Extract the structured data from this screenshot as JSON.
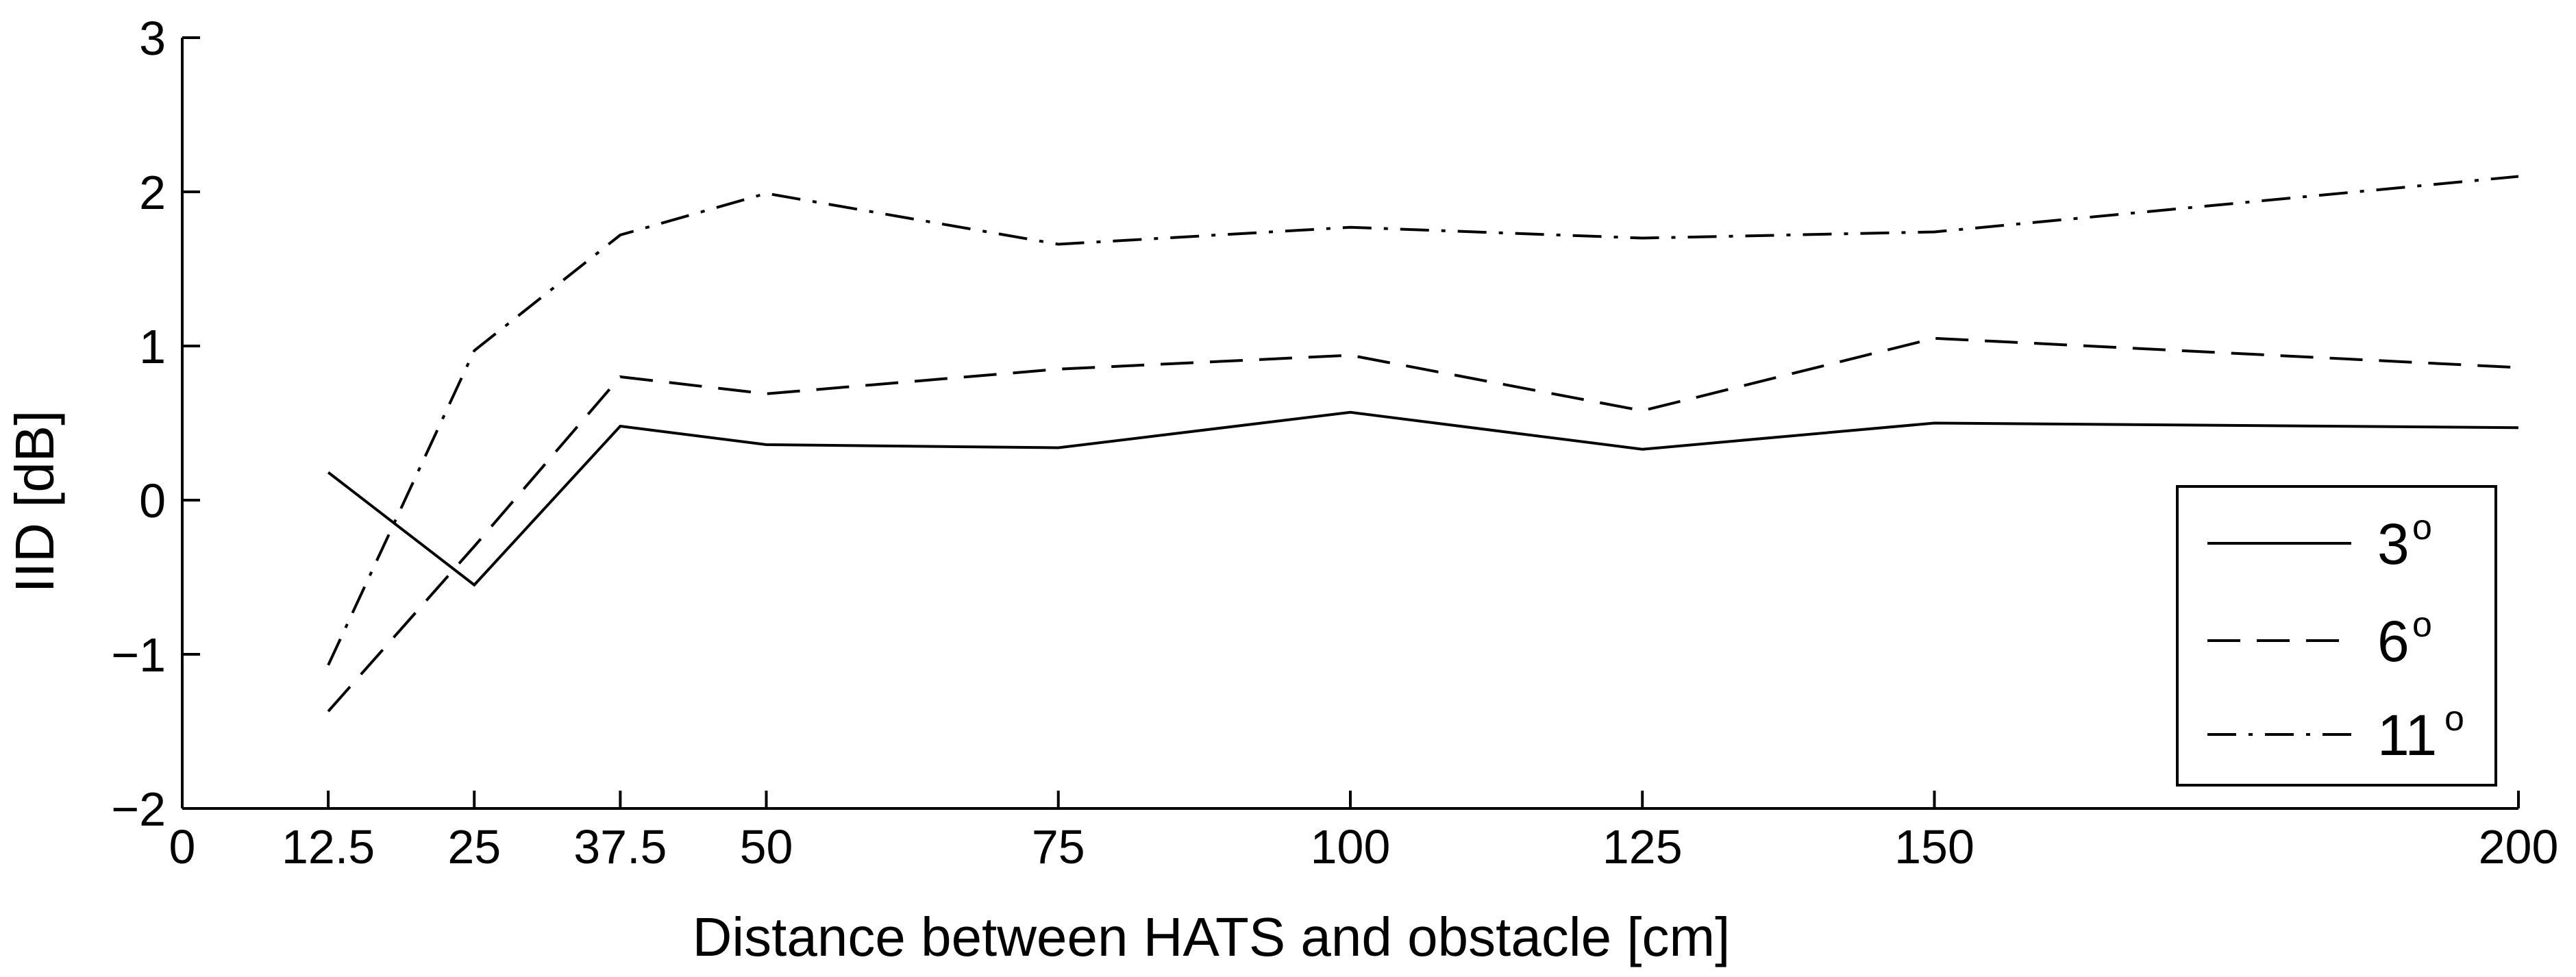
{
  "chart_data": {
    "type": "line",
    "xlabel": "Distance between HATS and obstacle [cm]",
    "ylabel": "IID [dB]",
    "x_ticks": [
      {
        "pos": 0,
        "label": "0"
      },
      {
        "pos": 1,
        "label": "12.5"
      },
      {
        "pos": 2,
        "label": "25"
      },
      {
        "pos": 3,
        "label": "37.5"
      },
      {
        "pos": 4,
        "label": "50"
      },
      {
        "pos": 6,
        "label": "75"
      },
      {
        "pos": 8,
        "label": "100"
      },
      {
        "pos": 10,
        "label": "125"
      },
      {
        "pos": 12,
        "label": "150"
      },
      {
        "pos": 16,
        "label": "200"
      }
    ],
    "y_ticks": [
      {
        "value": -2,
        "label": "−2"
      },
      {
        "value": -1,
        "label": "−1"
      },
      {
        "value": 0,
        "label": "0"
      },
      {
        "value": 1,
        "label": "1"
      },
      {
        "value": 2,
        "label": "2"
      },
      {
        "value": 3,
        "label": "3"
      }
    ],
    "x": [
      12.5,
      25,
      37.5,
      50,
      75,
      100,
      125,
      150,
      200
    ],
    "xlim": [
      0,
      200
    ],
    "ylim": [
      -2,
      3
    ],
    "grid": false,
    "legend_position": "bottom-right",
    "series": [
      {
        "name": "3",
        "name_sup": "o",
        "style": "solid",
        "values": [
          0.18,
          -0.55,
          0.48,
          0.36,
          0.34,
          0.57,
          0.33,
          0.5,
          0.47
        ]
      },
      {
        "name": "6",
        "name_sup": "o",
        "style": "dashed",
        "values": [
          -1.37,
          -0.3,
          0.8,
          0.69,
          0.85,
          0.94,
          0.58,
          1.05,
          0.86
        ]
      },
      {
        "name": "11",
        "name_sup": "o",
        "style": "dashdot",
        "values": [
          -1.07,
          0.97,
          1.72,
          1.99,
          1.66,
          1.77,
          1.7,
          1.74,
          2.1
        ]
      }
    ]
  }
}
